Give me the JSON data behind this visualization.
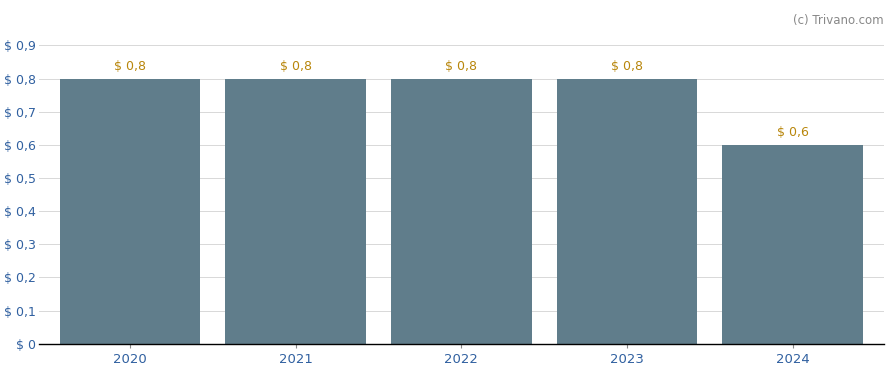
{
  "categories": [
    "2020",
    "2021",
    "2022",
    "2023",
    "2024"
  ],
  "values": [
    0.8,
    0.8,
    0.8,
    0.8,
    0.6
  ],
  "bar_color": "#607d8b",
  "bar_labels": [
    "$ 0,8",
    "$ 0,8",
    "$ 0,8",
    "$ 0,8",
    "$ 0,6"
  ],
  "bar_label_color": "#b8860b",
  "bar_label_fontsize": 9,
  "ylim": [
    0,
    0.9
  ],
  "yticks": [
    0,
    0.1,
    0.2,
    0.3,
    0.4,
    0.5,
    0.6,
    0.7,
    0.8,
    0.9
  ],
  "ytick_labels": [
    "$ 0",
    "$ 0,1",
    "$ 0,2",
    "$ 0,3",
    "$ 0,4",
    "$ 0,5",
    "$ 0,6",
    "$ 0,7",
    "$ 0,8",
    "$ 0,9"
  ],
  "ytick_color": "#3060a0",
  "xtick_color": "#3060a0",
  "background_color": "#ffffff",
  "grid_color": "#d8d8d8",
  "watermark": "(c) Trivano.com",
  "watermark_color": "#888888",
  "bar_width": 0.85,
  "figsize": [
    8.88,
    3.7
  ],
  "dpi": 100
}
